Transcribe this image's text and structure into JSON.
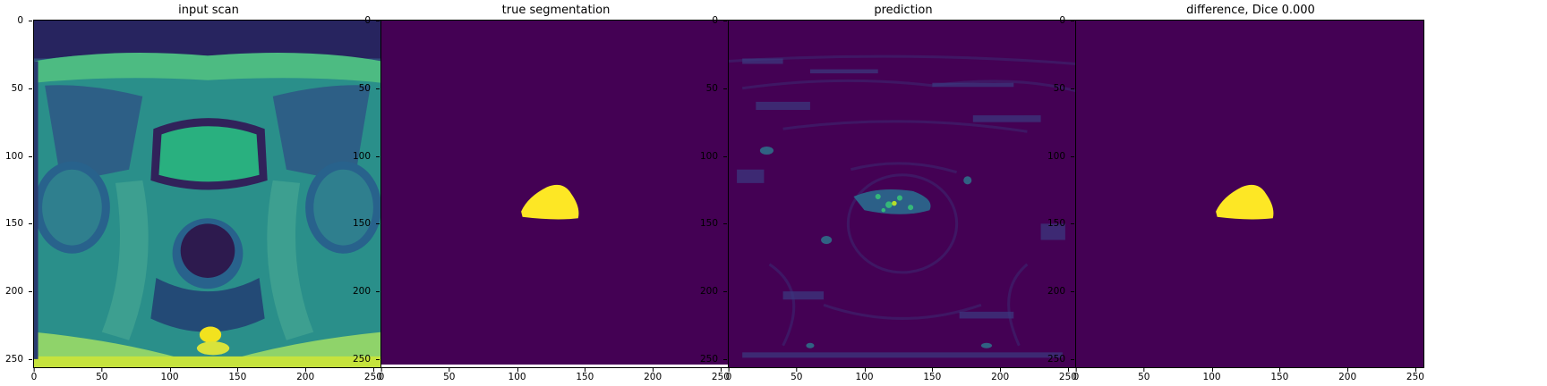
{
  "figure": {
    "colormap": {
      "low": "#440154",
      "mid": "#21918c",
      "high": "#fde725"
    },
    "panels": [
      {
        "id": "input",
        "title": "input scan",
        "kind": "scan"
      },
      {
        "id": "truth",
        "title": "true segmentation",
        "kind": "mask"
      },
      {
        "id": "prediction",
        "title": "prediction",
        "kind": "pred"
      },
      {
        "id": "difference",
        "title": "difference, Dice 0.000",
        "kind": "mask"
      }
    ],
    "axes": {
      "x_ticks": [
        "0",
        "50",
        "100",
        "150",
        "200",
        "250"
      ],
      "y_ticks": [
        "0",
        "50",
        "100",
        "150",
        "200",
        "250"
      ],
      "xlim": [
        0,
        256
      ],
      "ylim": [
        256,
        0
      ],
      "tick_values": [
        0,
        50,
        100,
        150,
        200,
        250
      ]
    }
  }
}
